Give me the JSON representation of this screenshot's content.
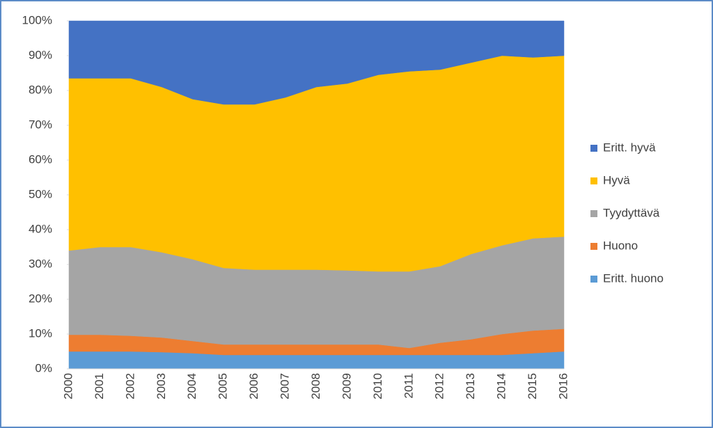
{
  "chart_data": {
    "type": "stacked_area_percent",
    "categories": [
      "2000",
      "2001",
      "2002",
      "2003",
      "2004",
      "2005",
      "2006",
      "2007",
      "2008",
      "2009",
      "2010",
      "2011",
      "2012",
      "2013",
      "2014",
      "2015",
      "2016"
    ],
    "series": [
      {
        "name": "Eritt. huono",
        "color": "#5b9bd5",
        "values": [
          5,
          5,
          5,
          4.8,
          4.5,
          4,
          4,
          4,
          4,
          4,
          4,
          4,
          4,
          4,
          4,
          4.5,
          5
        ]
      },
      {
        "name": "Huono",
        "color": "#ed7d31",
        "values": [
          4.8,
          4.8,
          4.5,
          4.2,
          3.5,
          3,
          3,
          3,
          3,
          3,
          3,
          2,
          3.5,
          4.5,
          6,
          6.5,
          6.5
        ]
      },
      {
        "name": "Tyydyttävä",
        "color": "#a5a5a5",
        "values": [
          24.2,
          25.2,
          25.5,
          24.5,
          23.5,
          22,
          21.5,
          21.5,
          21.5,
          21.3,
          21,
          22,
          22,
          24.5,
          25.5,
          26.5,
          26.5
        ]
      },
      {
        "name": "Hyvä",
        "color": "#ffc000",
        "values": [
          49.5,
          48.5,
          48.5,
          47.5,
          46,
          47,
          47.5,
          49.5,
          52.5,
          53.7,
          56.5,
          57.5,
          56.5,
          55,
          54.5,
          52,
          52
        ]
      },
      {
        "name": "Eritt. hyvä",
        "color": "#4472c4",
        "values": [
          16.5,
          16.5,
          16.5,
          19,
          22.5,
          24,
          24,
          22,
          19,
          18,
          15.5,
          14.5,
          14,
          12,
          10,
          10.5,
          10
        ]
      }
    ],
    "ylim": [
      0,
      100
    ],
    "yticks": [
      {
        "value": 0,
        "label": "0%"
      },
      {
        "value": 10,
        "label": "10%"
      },
      {
        "value": 20,
        "label": "20%"
      },
      {
        "value": 30,
        "label": "30%"
      },
      {
        "value": 40,
        "label": "40%"
      },
      {
        "value": 50,
        "label": "50%"
      },
      {
        "value": 60,
        "label": "60%"
      },
      {
        "value": 70,
        "label": "70%"
      },
      {
        "value": 80,
        "label": "80%"
      },
      {
        "value": 90,
        "label": "90%"
      },
      {
        "value": 100,
        "label": "100%"
      }
    ],
    "legend": "right"
  }
}
